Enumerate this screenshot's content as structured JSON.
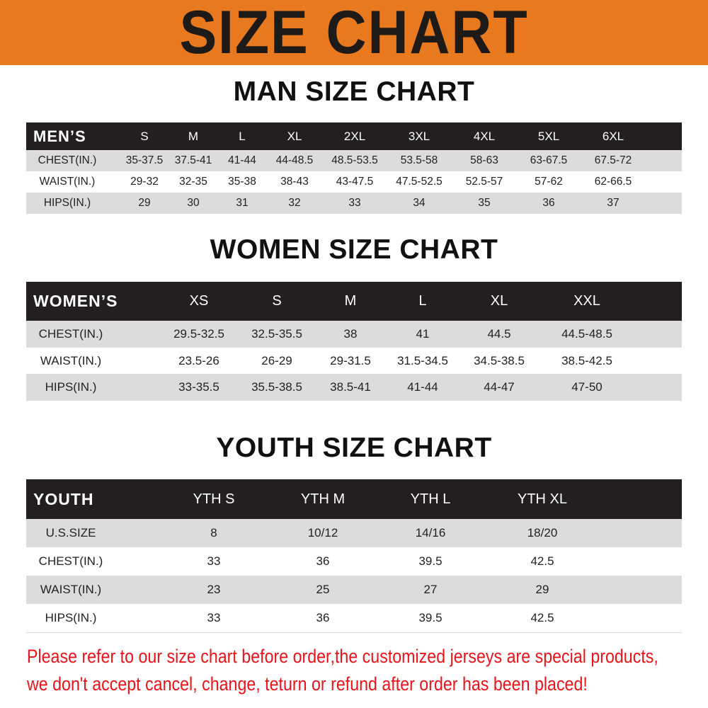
{
  "banner": {
    "title": "SIZE CHART",
    "color": "#e8791e"
  },
  "men": {
    "title": "MAN SIZE CHART",
    "header": "MEN’S",
    "sizes": [
      "S",
      "M",
      "L",
      "XL",
      "2XL",
      "3XL",
      "4XL",
      "5XL",
      "6XL"
    ],
    "rows": [
      {
        "label": "CHEST(IN.)",
        "values": [
          "35-37.5",
          "37.5-41",
          "41-44",
          "44-48.5",
          "48.5-53.5",
          "53.5-58",
          "58-63",
          "63-67.5",
          "67.5-72"
        ]
      },
      {
        "label": "WAIST(IN.)",
        "values": [
          "29-32",
          "32-35",
          "35-38",
          "38-43",
          "43-47.5",
          "47.5-52.5",
          "52.5-57",
          "57-62",
          "62-66.5"
        ]
      },
      {
        "label": "HIPS(IN.)",
        "values": [
          "29",
          "30",
          "31",
          "32",
          "33",
          "34",
          "35",
          "36",
          "37"
        ]
      }
    ]
  },
  "women": {
    "title": "WOMEN SIZE CHART",
    "header": "WOMEN’S",
    "sizes": [
      "XS",
      "S",
      "M",
      "L",
      "XL",
      "XXL"
    ],
    "rows": [
      {
        "label": "CHEST(IN.)",
        "values": [
          "29.5-32.5",
          "32.5-35.5",
          "38",
          "41",
          "44.5",
          "44.5-48.5"
        ]
      },
      {
        "label": "WAIST(IN.)",
        "values": [
          "23.5-26",
          "26-29",
          "29-31.5",
          "31.5-34.5",
          "34.5-38.5",
          "38.5-42.5"
        ]
      },
      {
        "label": "HIPS(IN.)",
        "values": [
          "33-35.5",
          "35.5-38.5",
          "38.5-41",
          "41-44",
          "44-47",
          "47-50"
        ]
      }
    ]
  },
  "youth": {
    "title": "YOUTH SIZE CHART",
    "header": "YOUTH",
    "sizes": [
      "YTH S",
      "YTH M",
      "YTH L",
      "YTH XL"
    ],
    "rows": [
      {
        "label": "U.S.SIZE",
        "values": [
          "8",
          "10/12",
          "14/16",
          "18/20"
        ]
      },
      {
        "label": "CHEST(IN.)",
        "values": [
          "33",
          "36",
          "39.5",
          "42.5"
        ]
      },
      {
        "label": "WAIST(IN.)",
        "values": [
          "23",
          "25",
          "27",
          "29"
        ]
      },
      {
        "label": "HIPS(IN.)",
        "values": [
          "33",
          "36",
          "39.5",
          "42.5"
        ]
      }
    ]
  },
  "notice": {
    "line1": "Please refer to our size chart before order,the customized jerseys are special products,",
    "line2": "we don't accept cancel, change, teturn or refund after order has been placed!",
    "color": "#e8141b"
  }
}
